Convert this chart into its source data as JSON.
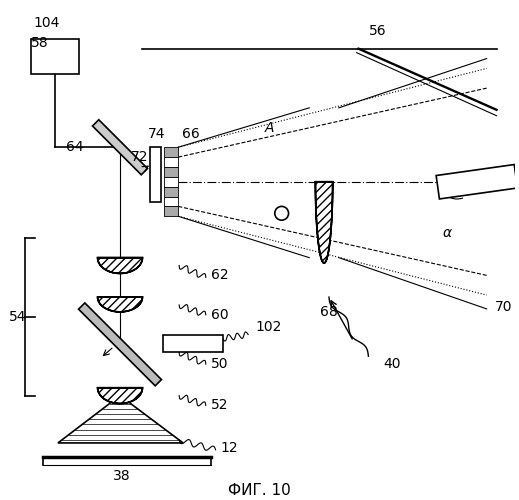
{
  "title": "ФИГ. 10",
  "background_color": "#ffffff",
  "line_color": "#000000",
  "fig_width": 5.19,
  "fig_height": 5.0,
  "dpi": 100
}
